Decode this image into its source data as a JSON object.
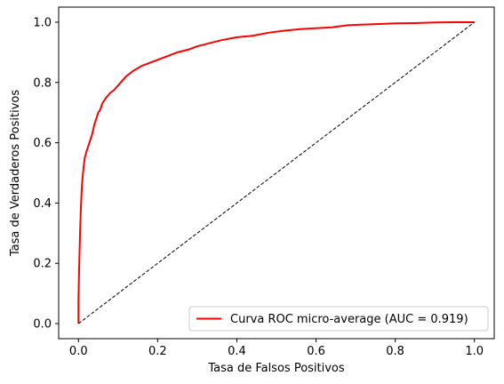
{
  "chart_data": {
    "type": "line",
    "xlabel": "Tasa de Falsos Positivos",
    "ylabel": "Tasa de Verdaderos Positivos",
    "xlim": [
      -0.05,
      1.05
    ],
    "ylim": [
      -0.05,
      1.05
    ],
    "x_ticks": [
      "0.0",
      "0.2",
      "0.4",
      "0.6",
      "0.8",
      "1.0"
    ],
    "y_ticks": [
      "0.0",
      "0.2",
      "0.4",
      "0.6",
      "0.8",
      "1.0"
    ],
    "grid": false,
    "legend_position": "lower right",
    "legend_label": "Curva ROC micro-average (AUC = 0.919)",
    "series": [
      {
        "name": "Curva ROC micro-average (AUC = 0.919)",
        "color": "#ff0000",
        "line_style": "solid",
        "x": [
          0,
          0,
          0.002,
          0.004,
          0.006,
          0.008,
          0.01,
          0.013,
          0.016,
          0.02,
          0.025,
          0.03,
          0.035,
          0.04,
          0.045,
          0.05,
          0.055,
          0.06,
          0.07,
          0.08,
          0.09,
          0.1,
          0.11,
          0.12,
          0.14,
          0.16,
          0.18,
          0.2,
          0.22,
          0.25,
          0.28,
          0.3,
          0.33,
          0.36,
          0.4,
          0.44,
          0.48,
          0.52,
          0.56,
          0.6,
          0.64,
          0.68,
          0.72,
          0.76,
          0.8,
          0.85,
          0.9,
          0.95,
          1.0
        ],
        "y": [
          0,
          0.08,
          0.2,
          0.3,
          0.38,
          0.44,
          0.48,
          0.52,
          0.55,
          0.57,
          0.59,
          0.61,
          0.63,
          0.66,
          0.68,
          0.7,
          0.71,
          0.73,
          0.75,
          0.765,
          0.775,
          0.79,
          0.805,
          0.82,
          0.84,
          0.855,
          0.865,
          0.875,
          0.885,
          0.9,
          0.91,
          0.92,
          0.93,
          0.94,
          0.95,
          0.955,
          0.965,
          0.972,
          0.977,
          0.98,
          0.983,
          0.99,
          0.992,
          0.994,
          0.996,
          0.997,
          0.999,
          1.0,
          1.0
        ]
      },
      {
        "name": "",
        "color": "#000000",
        "line_style": "dashed",
        "x": [
          0,
          1
        ],
        "y": [
          0,
          1
        ]
      }
    ]
  }
}
